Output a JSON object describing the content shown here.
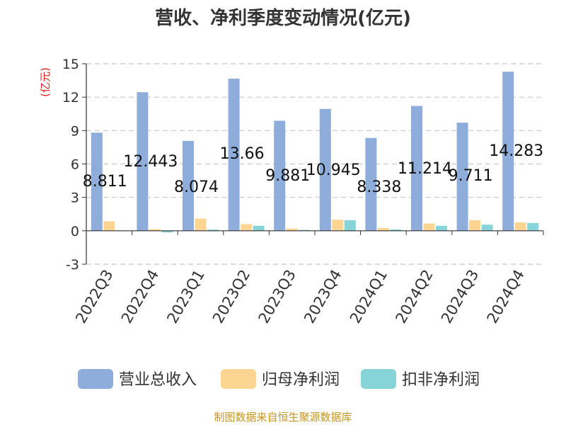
{
  "chart_data": {
    "type": "bar",
    "title": "营收、净利季度变动情况(亿元)",
    "ylabel": "(亿元)",
    "ylim": [
      -3,
      15
    ],
    "yticks": [
      -3,
      0,
      3,
      6,
      9,
      12,
      15
    ],
    "grid": true,
    "legend_position": "bottom",
    "categories": [
      "2022Q3",
      "2022Q4",
      "2023Q1",
      "2023Q2",
      "2023Q3",
      "2023Q4",
      "2024Q1",
      "2024Q2",
      "2024Q3",
      "2024Q4"
    ],
    "series": [
      {
        "name": "营业总收入",
        "color": "#8fadda",
        "values": [
          8.811,
          12.443,
          8.074,
          13.66,
          9.881,
          10.945,
          8.338,
          11.214,
          9.711,
          14.283
        ]
      },
      {
        "name": "归母净利润",
        "color": "#fcd592",
        "values": [
          0.85,
          0.15,
          1.1,
          0.6,
          0.2,
          1.0,
          0.25,
          0.65,
          0.95,
          0.75
        ]
      },
      {
        "name": "扣非净利润",
        "color": "#86d4d8",
        "values": [
          0.02,
          -0.15,
          0.1,
          0.45,
          0.08,
          0.95,
          0.12,
          0.45,
          0.55,
          0.7
        ]
      }
    ],
    "data_labels": [
      "8.811",
      "12.443",
      "8.074",
      "13.66",
      "9.881",
      "10.945",
      "8.338",
      "11.214",
      "9.711",
      "14.283"
    ]
  },
  "source_note": "制图数据来自恒生聚源数据库"
}
